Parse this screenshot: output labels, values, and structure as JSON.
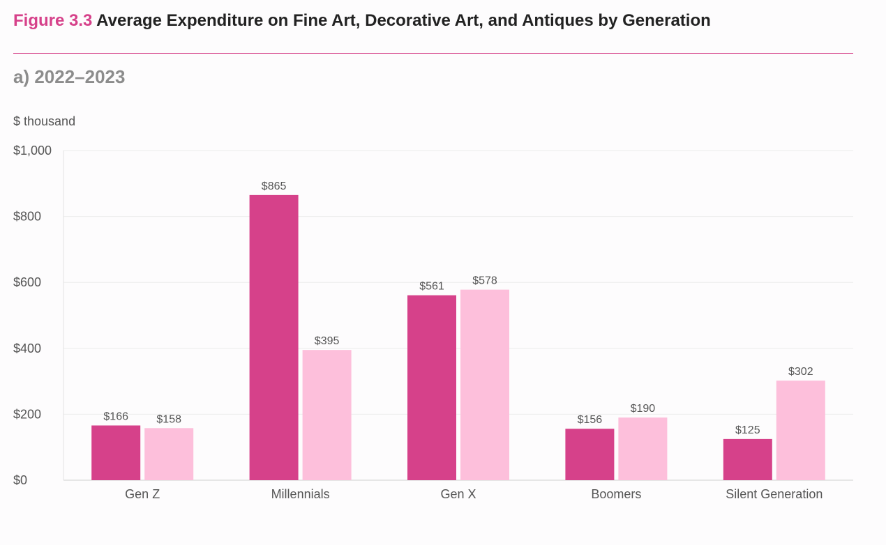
{
  "header": {
    "figure_label": "Figure 3.3",
    "title": "Average Expenditure on Fine Art, Decorative Art, and Antiques by Generation",
    "subtitle": "a) 2022–2023"
  },
  "colors": {
    "accent": "#d6418a",
    "series_1": "#d6418a",
    "series_2": "#fdbfdb",
    "gridline": "#ececec"
  },
  "chart_data": {
    "type": "bar",
    "title": "Average Expenditure on Fine Art, Decorative Art, and Antiques by Generation",
    "ylabel": "$ thousand",
    "xlabel": "",
    "ylim": [
      0,
      1000
    ],
    "yticks": [
      0,
      200,
      400,
      600,
      800,
      1000
    ],
    "ytick_labels": [
      "$0",
      "$200",
      "$400",
      "$600",
      "$800",
      "$1,000"
    ],
    "grid": true,
    "categories": [
      "Gen Z",
      "Millennials",
      "Gen X",
      "Boomers",
      "Silent Generation"
    ],
    "series": [
      {
        "name": "Series 1",
        "values": [
          166,
          865,
          561,
          156,
          125
        ],
        "labels": [
          "$166",
          "$865",
          "$561",
          "$156",
          "$125"
        ]
      },
      {
        "name": "Series 2",
        "values": [
          158,
          395,
          578,
          190,
          302
        ],
        "labels": [
          "$158",
          "$395",
          "$578",
          "$190",
          "$302"
        ]
      }
    ]
  }
}
